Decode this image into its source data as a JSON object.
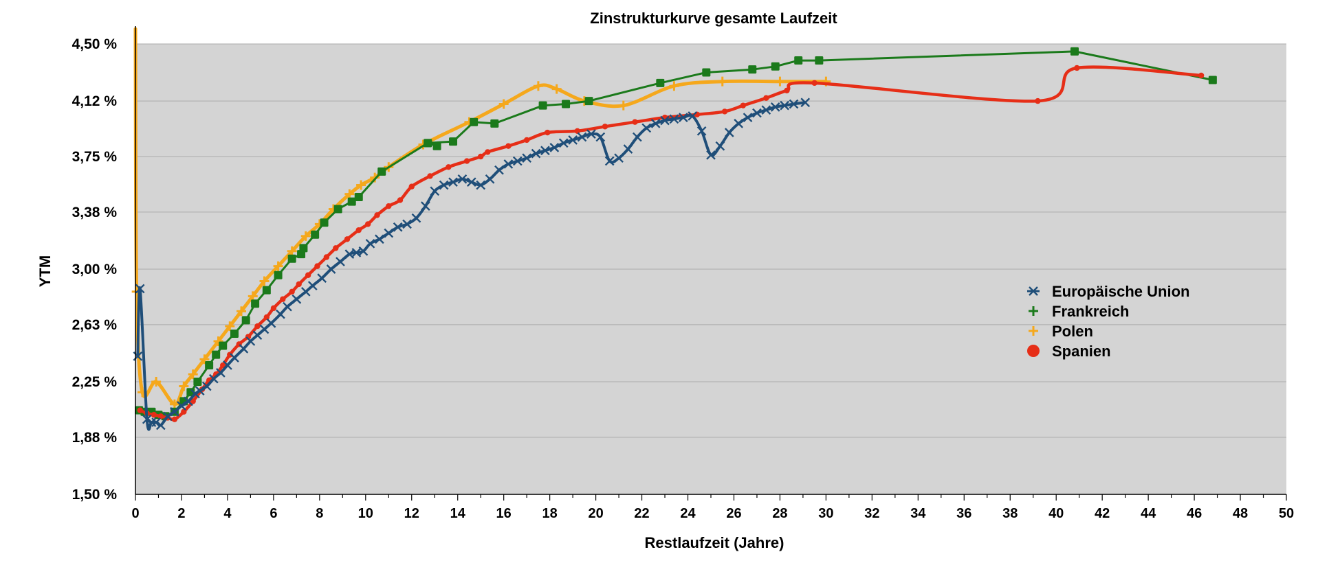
{
  "chart_data": {
    "type": "line",
    "title": "Zinstrukturkurve gesamte Laufzeit",
    "xlabel": "Restlaufzeit (Jahre)",
    "ylabel": "YTM",
    "xlim": [
      0,
      50
    ],
    "ylim": [
      1.5,
      4.6
    ],
    "x_ticks": [
      0,
      2,
      4,
      6,
      8,
      10,
      12,
      14,
      16,
      18,
      20,
      22,
      24,
      26,
      28,
      30,
      32,
      34,
      36,
      38,
      40,
      42,
      44,
      46,
      48,
      50
    ],
    "x_tick_labels": [
      "0",
      "2",
      "4",
      "6",
      "8",
      "10",
      "12",
      "14",
      "16",
      "18",
      "20",
      "22",
      "24",
      "26",
      "28",
      "30",
      "32",
      "34",
      "36",
      "38",
      "40",
      "42",
      "44",
      "46",
      "48",
      "50"
    ],
    "y_ticks": [
      1.5,
      1.88,
      2.25,
      2.63,
      3.0,
      3.38,
      3.75,
      4.12,
      4.5
    ],
    "y_tick_labels": [
      "1,50 %",
      "1,88 %",
      "2,25 %",
      "2,63 %",
      "3,00 %",
      "3,38 %",
      "3,75 %",
      "4,12 %",
      "4,50 %"
    ],
    "grid": "horizontal",
    "legend_position": "right",
    "plot_background": "#d4d4d4",
    "series": [
      {
        "name": "Europäische Union",
        "color": "#1f4e79",
        "marker": "x",
        "smooth": true,
        "x": [
          0.1,
          0.2,
          0.5,
          0.7,
          0.9,
          1.1,
          1.4,
          1.7,
          2.0,
          2.3,
          2.6,
          2.8,
          3.1,
          3.4,
          3.7,
          4.0,
          4.3,
          4.7,
          5.0,
          5.3,
          5.6,
          5.9,
          6.3,
          6.6,
          7.0,
          7.4,
          7.7,
          8.1,
          8.5,
          8.9,
          9.3,
          9.6,
          9.9,
          10.2,
          10.6,
          11.0,
          11.4,
          11.8,
          12.2,
          12.6,
          13.0,
          13.4,
          13.8,
          14.2,
          14.6,
          15.0,
          15.4,
          15.8,
          16.2,
          16.6,
          17.0,
          17.4,
          17.8,
          18.2,
          18.6,
          19.0,
          19.4,
          19.8,
          20.2,
          20.6,
          21.0,
          21.4,
          21.8,
          22.2,
          22.6,
          23.0,
          23.4,
          23.8,
          24.2,
          24.6,
          25.0,
          25.4,
          25.8,
          26.2,
          26.6,
          27.0,
          27.4,
          27.8,
          28.2,
          28.6,
          29.1
        ],
        "y": [
          2.42,
          2.87,
          2.0,
          1.98,
          1.98,
          1.96,
          2.02,
          2.05,
          2.09,
          2.12,
          2.17,
          2.19,
          2.22,
          2.27,
          2.31,
          2.36,
          2.41,
          2.47,
          2.52,
          2.56,
          2.6,
          2.64,
          2.7,
          2.75,
          2.8,
          2.85,
          2.89,
          2.94,
          3.0,
          3.05,
          3.1,
          3.11,
          3.12,
          3.17,
          3.2,
          3.24,
          3.28,
          3.3,
          3.34,
          3.42,
          3.52,
          3.56,
          3.58,
          3.6,
          3.58,
          3.56,
          3.6,
          3.66,
          3.7,
          3.72,
          3.74,
          3.77,
          3.79,
          3.81,
          3.84,
          3.86,
          3.88,
          3.9,
          3.88,
          3.72,
          3.74,
          3.8,
          3.88,
          3.94,
          3.97,
          3.99,
          4.0,
          4.01,
          4.02,
          3.92,
          3.76,
          3.82,
          3.91,
          3.97,
          4.01,
          4.04,
          4.06,
          4.08,
          4.09,
          4.1,
          4.11
        ]
      },
      {
        "name": "Frankreich",
        "color": "#1b7a1b",
        "marker": "square",
        "smooth": false,
        "x": [
          0.15,
          0.4,
          0.7,
          1.0,
          1.3,
          1.7,
          2.1,
          2.4,
          2.7,
          3.2,
          3.5,
          3.8,
          4.3,
          4.8,
          5.2,
          5.7,
          6.2,
          6.8,
          7.2,
          7.3,
          7.8,
          8.2,
          8.8,
          9.4,
          9.7,
          10.7,
          12.7,
          13.1,
          12.7,
          13.8,
          14.7,
          15.6,
          17.7,
          18.7,
          19.7,
          22.8,
          24.8,
          26.8,
          27.8,
          28.8,
          29.7,
          40.8,
          46.8
        ],
        "y": [
          2.06,
          2.05,
          2.05,
          2.03,
          2.02,
          2.05,
          2.12,
          2.18,
          2.25,
          2.36,
          2.43,
          2.49,
          2.57,
          2.66,
          2.77,
          2.86,
          2.96,
          3.07,
          3.1,
          3.14,
          3.23,
          3.31,
          3.4,
          3.45,
          3.48,
          3.65,
          3.84,
          3.82,
          3.84,
          3.85,
          3.98,
          3.97,
          4.09,
          4.1,
          4.12,
          4.24,
          4.31,
          4.33,
          4.35,
          4.39,
          4.39,
          4.45,
          4.26
        ]
      },
      {
        "name": "Polen",
        "color": "#f5a81c",
        "marker": "plus",
        "smooth": true,
        "x": [
          0.0,
          0.05,
          0.3,
          0.9,
          1.7,
          2.1,
          2.5,
          3.0,
          3.6,
          4.1,
          4.6,
          5.1,
          5.6,
          6.2,
          6.8,
          7.4,
          8.0,
          8.6,
          9.3,
          9.8,
          10.4,
          11.0,
          12.5,
          14.5,
          16.0,
          17.5,
          18.3,
          19.5,
          21.2,
          23.4,
          25.5,
          28.0,
          30.0
        ],
        "y": [
          4.6,
          2.85,
          2.18,
          2.25,
          2.1,
          2.22,
          2.3,
          2.4,
          2.52,
          2.62,
          2.72,
          2.82,
          2.92,
          3.02,
          3.12,
          3.22,
          3.3,
          3.4,
          3.5,
          3.56,
          3.61,
          3.68,
          3.83,
          3.98,
          4.1,
          4.22,
          4.2,
          4.12,
          4.09,
          4.22,
          4.25,
          4.25,
          4.25
        ]
      },
      {
        "name": "Spanien",
        "color": "#e62e17",
        "marker": "circle",
        "smooth": true,
        "x": [
          0.2,
          0.5,
          0.8,
          1.1,
          1.4,
          1.7,
          2.1,
          2.5,
          2.9,
          3.2,
          3.5,
          3.8,
          4.1,
          4.5,
          4.9,
          5.3,
          5.7,
          6.0,
          6.4,
          6.8,
          7.1,
          7.5,
          7.9,
          8.3,
          8.7,
          9.2,
          9.7,
          10.1,
          10.5,
          11.0,
          11.5,
          12.0,
          12.8,
          13.6,
          14.4,
          15.0,
          15.3,
          16.2,
          17.0,
          17.9,
          19.2,
          20.4,
          21.7,
          23.0,
          24.4,
          25.6,
          26.4,
          27.4,
          28.3,
          29.5,
          39.2,
          40.9,
          46.3
        ],
        "y": [
          2.06,
          2.04,
          2.03,
          2.02,
          2.01,
          2.0,
          2.05,
          2.12,
          2.2,
          2.26,
          2.3,
          2.36,
          2.43,
          2.5,
          2.55,
          2.62,
          2.68,
          2.74,
          2.8,
          2.85,
          2.9,
          2.96,
          3.02,
          3.08,
          3.14,
          3.2,
          3.26,
          3.3,
          3.36,
          3.42,
          3.46,
          3.55,
          3.62,
          3.68,
          3.72,
          3.75,
          3.78,
          3.82,
          3.86,
          3.91,
          3.92,
          3.95,
          3.98,
          4.01,
          4.03,
          4.05,
          4.09,
          4.14,
          4.19,
          4.24,
          4.12,
          4.34,
          4.29
        ]
      }
    ]
  }
}
